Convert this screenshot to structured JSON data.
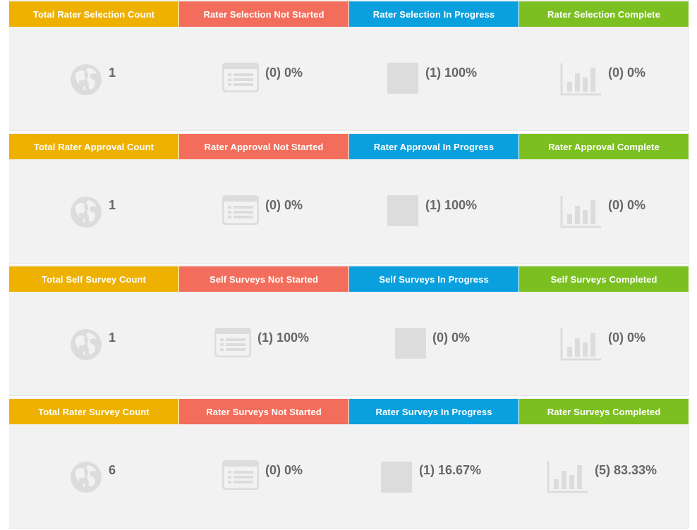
{
  "rows": [
    {
      "cards": [
        {
          "title": "Total Rater Selection Count",
          "value": "1",
          "icon": "globe-icon"
        },
        {
          "title": "Rater Selection Not Started",
          "value": "(0) 0%",
          "icon": "list-icon"
        },
        {
          "title": "Rater Selection In Progress",
          "value": "(1) 100%",
          "icon": "square-icon"
        },
        {
          "title": "Rater Selection Complete",
          "value": "(0) 0%",
          "icon": "bar-chart-icon"
        }
      ]
    },
    {
      "cards": [
        {
          "title": "Total Rater Approval Count",
          "value": "1",
          "icon": "globe-icon"
        },
        {
          "title": "Rater Approval Not Started",
          "value": "(0) 0%",
          "icon": "list-icon"
        },
        {
          "title": "Rater Approval In Progress",
          "value": "(1) 100%",
          "icon": "square-icon"
        },
        {
          "title": "Rater Approval Complete",
          "value": "(0) 0%",
          "icon": "bar-chart-icon"
        }
      ]
    },
    {
      "cards": [
        {
          "title": "Total Self Survey Count",
          "value": "1",
          "icon": "globe-icon"
        },
        {
          "title": "Self Surveys Not Started",
          "value": "(1) 100%",
          "icon": "list-icon"
        },
        {
          "title": "Self Surveys In Progress",
          "value": "(0) 0%",
          "icon": "square-icon"
        },
        {
          "title": "Self Surveys Completed",
          "value": "(0) 0%",
          "icon": "bar-chart-icon"
        }
      ]
    },
    {
      "cards": [
        {
          "title": "Total Rater Survey Count",
          "value": "6",
          "icon": "globe-icon"
        },
        {
          "title": "Rater Surveys Not Started",
          "value": "(0) 0%",
          "icon": "list-icon"
        },
        {
          "title": "Rater Surveys In Progress",
          "value": "(1) 16.67%",
          "icon": "square-icon"
        },
        {
          "title": "Rater Surveys Completed",
          "value": "(5) 83.33%",
          "icon": "bar-chart-icon"
        }
      ]
    }
  ],
  "colors": {
    "total": "#eeb100",
    "not_started": "#f26d5b",
    "in_progress": "#0aa0dd",
    "complete": "#7cbf21",
    "card_bg": "#f2f2f2",
    "icon": "#dcdcdc",
    "value_text": "#666666"
  }
}
